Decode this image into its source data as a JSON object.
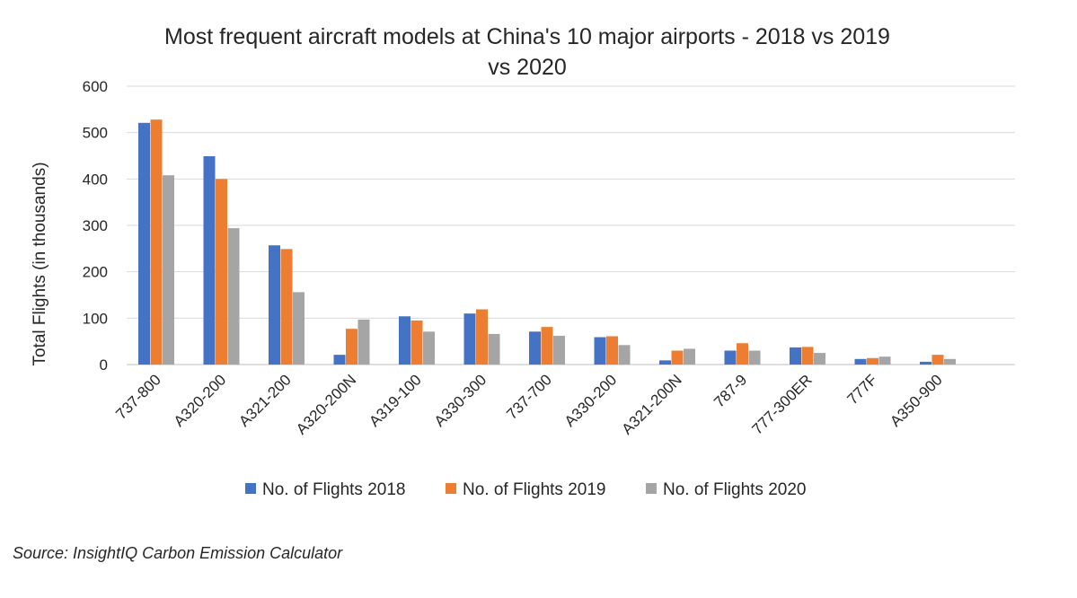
{
  "chart_data": {
    "type": "bar",
    "title_lines": [
      "Most frequent aircraft models at China's 10 major airports - 2018 vs 2019",
      "vs 2020"
    ],
    "xlabel": "",
    "ylabel": "Total Flights (in thousands)",
    "ylim": [
      0,
      600
    ],
    "yticks": [
      0,
      100,
      200,
      300,
      400,
      500,
      600
    ],
    "grid": true,
    "legend_position": "bottom",
    "categories": [
      "737-800",
      "A320-200",
      "A321-200",
      "A320-200N",
      "A319-100",
      "A330-300",
      "737-700",
      "A330-200",
      "A321-200N",
      "787-9",
      "777-300ER",
      "777F",
      "A350-900"
    ],
    "series": [
      {
        "name": "No. of Flights 2018",
        "color": "#4472c4",
        "values": [
          521,
          449,
          257,
          21,
          104,
          110,
          71,
          59,
          9,
          30,
          37,
          12,
          6
        ]
      },
      {
        "name": "No. of Flights 2019",
        "color": "#ed7d31",
        "values": [
          528,
          400,
          249,
          77,
          95,
          119,
          81,
          61,
          30,
          46,
          38,
          14,
          21
        ]
      },
      {
        "name": "No. of Flights 2020",
        "color": "#a5a5a5",
        "values": [
          408,
          294,
          156,
          97,
          71,
          66,
          62,
          42,
          34,
          30,
          25,
          17,
          12
        ]
      }
    ]
  },
  "source": "Source: InsightIQ Carbon Emission Calculator"
}
